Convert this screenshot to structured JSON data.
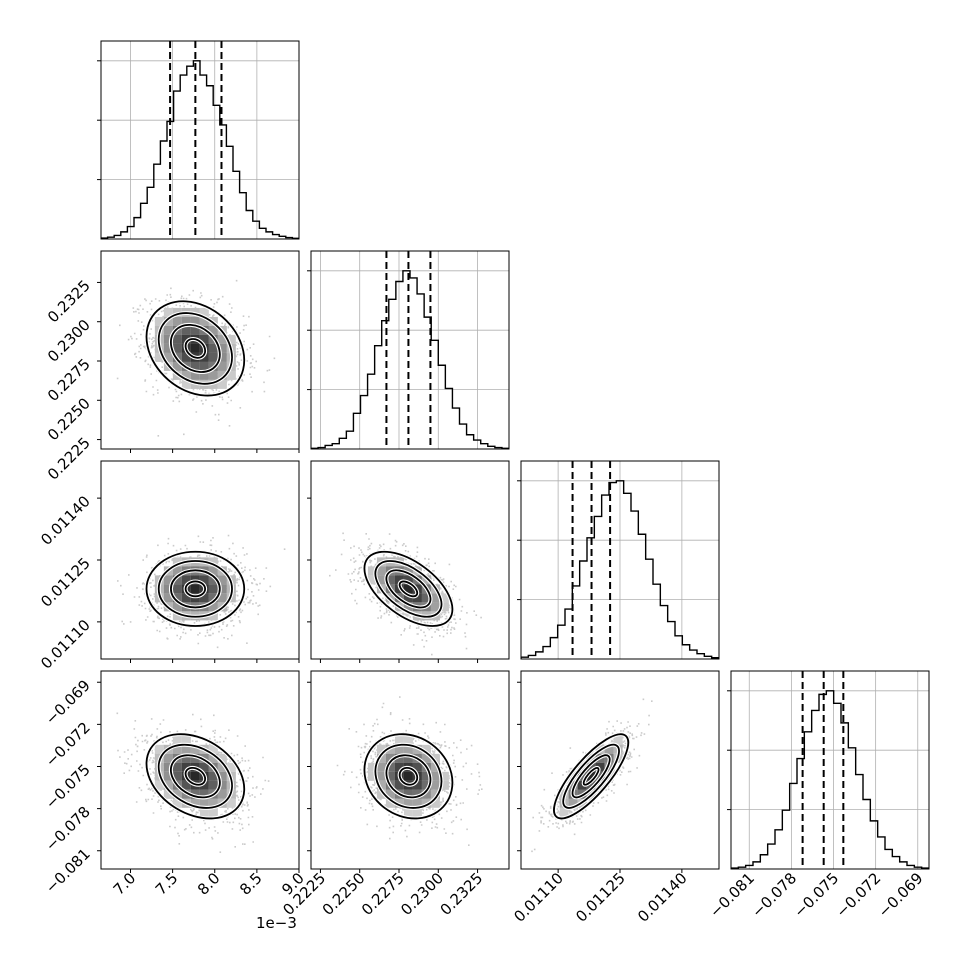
{
  "chart_data": {
    "type": "corner",
    "grid": true,
    "parameters": [
      {
        "range": [
          6.65,
          9.0
        ],
        "ticks": [
          7.0,
          7.5,
          8.0,
          8.5,
          9.0
        ],
        "tick_labels": [
          "7.0",
          "7.5",
          "8.0",
          "8.5",
          "9.0"
        ],
        "axis_offset_text": "1e−3",
        "quantiles": [
          7.47,
          7.77,
          8.08
        ],
        "histogram_rel": [
          0.005,
          0.01,
          0.02,
          0.04,
          0.07,
          0.12,
          0.2,
          0.29,
          0.42,
          0.55,
          0.66,
          0.83,
          0.92,
          0.97,
          1.0,
          0.92,
          0.86,
          0.75,
          0.64,
          0.52,
          0.38,
          0.26,
          0.16,
          0.1,
          0.06,
          0.04,
          0.025,
          0.015,
          0.008,
          0.004
        ]
      },
      {
        "range": [
          0.2219,
          0.2345
        ],
        "ticks": [
          0.2225,
          0.225,
          0.2275,
          0.23,
          0.2325
        ],
        "tick_labels": [
          "0.2225",
          "0.2250",
          "0.2275",
          "0.2300",
          "0.2325"
        ],
        "quantiles": [
          0.2267,
          0.2281,
          0.2295
        ],
        "histogram_rel": [
          0.004,
          0.008,
          0.02,
          0.03,
          0.06,
          0.1,
          0.2,
          0.3,
          0.42,
          0.58,
          0.72,
          0.84,
          0.94,
          1.0,
          0.96,
          0.87,
          0.74,
          0.61,
          0.47,
          0.34,
          0.23,
          0.14,
          0.08,
          0.05,
          0.03,
          0.015,
          0.008,
          0.004
        ]
      },
      {
        "range": [
          0.01101,
          0.01149
        ],
        "ticks": [
          0.0111,
          0.01125,
          0.0114
        ],
        "tick_labels": [
          "0.01110",
          "0.01125",
          "0.01140"
        ],
        "quantiles": [
          0.011135,
          0.011181,
          0.011226
        ],
        "histogram_rel": [
          0.01,
          0.02,
          0.04,
          0.07,
          0.12,
          0.19,
          0.28,
          0.41,
          0.55,
          0.68,
          0.8,
          0.92,
          0.99,
          1.0,
          0.93,
          0.83,
          0.7,
          0.56,
          0.42,
          0.3,
          0.21,
          0.13,
          0.08,
          0.05,
          0.03,
          0.015,
          0.007
        ]
      },
      {
        "range": [
          -0.0823,
          -0.0682
        ],
        "ticks": [
          -0.081,
          -0.078,
          -0.075,
          -0.072,
          -0.069
        ],
        "tick_labels": [
          "−0.081",
          "−0.078",
          "−0.075",
          "−0.072",
          "−0.069"
        ],
        "quantiles": [
          -0.0772,
          -0.0757,
          -0.0743
        ],
        "histogram_rel": [
          0.005,
          0.01,
          0.02,
          0.04,
          0.08,
          0.14,
          0.22,
          0.33,
          0.48,
          0.62,
          0.77,
          0.89,
          0.98,
          1.0,
          0.93,
          0.82,
          0.68,
          0.53,
          0.39,
          0.27,
          0.18,
          0.11,
          0.07,
          0.04,
          0.02,
          0.01,
          0.005
        ]
      }
    ],
    "pairs": [
      {
        "row": 1,
        "col": 0,
        "mean": [
          7.77,
          0.2283
        ],
        "std": [
          0.29,
          0.0015
        ],
        "corr": -0.25
      },
      {
        "row": 2,
        "col": 0,
        "mean": [
          7.77,
          0.01118
        ],
        "std": [
          0.29,
          4.5e-05
        ],
        "corr": 0.0
      },
      {
        "row": 2,
        "col": 1,
        "mean": [
          0.2281,
          0.01118
        ],
        "std": [
          0.0014,
          4.5e-05
        ],
        "corr": -0.55
      },
      {
        "row": 3,
        "col": 0,
        "mean": [
          7.77,
          -0.0757
        ],
        "std": [
          0.29,
          0.0015
        ],
        "corr": -0.3
      },
      {
        "row": 3,
        "col": 1,
        "mean": [
          0.2281,
          -0.0757
        ],
        "std": [
          0.0014,
          0.0015
        ],
        "corr": -0.15
      },
      {
        "row": 3,
        "col": 2,
        "mean": [
          0.01118,
          -0.0757
        ],
        "std": [
          4.5e-05,
          0.0015
        ],
        "corr": 0.8
      }
    ],
    "colors": {
      "line": "#000000",
      "grid": "#b0b0b0",
      "points": "#8c8c8c",
      "density_dark": "#000000",
      "density_light": "#ffffff"
    }
  }
}
